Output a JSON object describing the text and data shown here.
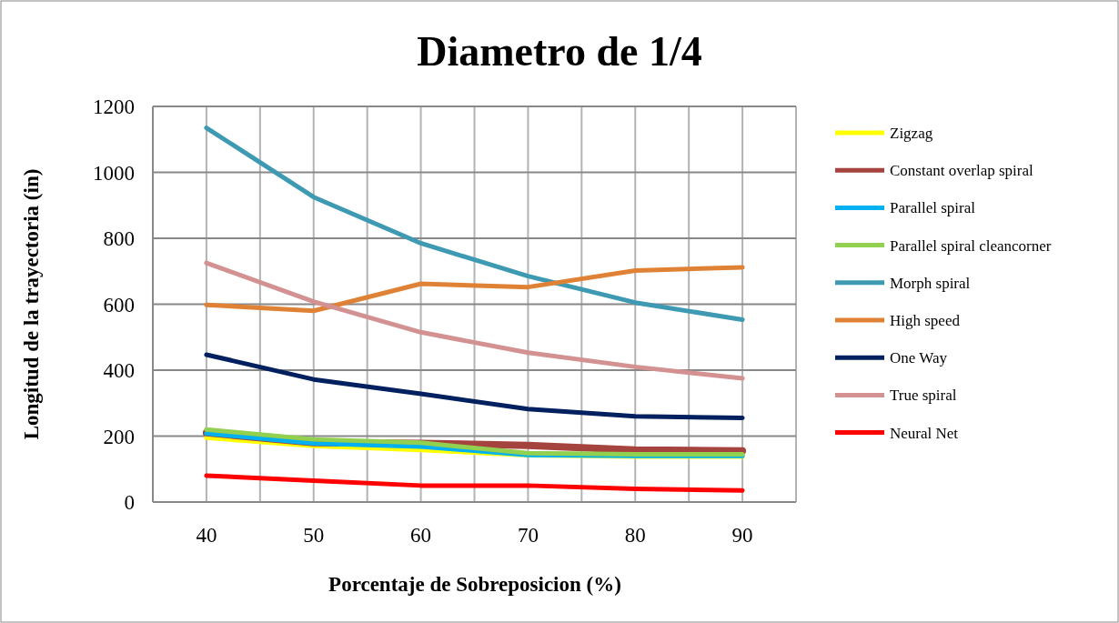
{
  "chart_data": {
    "type": "line",
    "title": "Diametro de 1/4",
    "xlabel": "Porcentaje de Sobreposicion (%)",
    "ylabel": "Longitud de la trayectoria (in)",
    "x": [
      40,
      50,
      60,
      70,
      80,
      90
    ],
    "xlim": [
      35,
      95
    ],
    "xticks": [
      {
        "value": 35,
        "label": null
      },
      40,
      {
        "value": 45,
        "label": null
      },
      50,
      {
        "value": 55,
        "label": null
      },
      60,
      {
        "value": 65,
        "label": null
      },
      70,
      {
        "value": 75,
        "label": null
      },
      80,
      {
        "value": 85,
        "label": null
      },
      90,
      {
        "value": 95,
        "label": null
      }
    ],
    "ylim": [
      0,
      1200
    ],
    "yticks": [
      0,
      200,
      400,
      600,
      800,
      1000,
      1200
    ],
    "grid": true,
    "legend": "right",
    "marker": "none",
    "line_style": "solid",
    "series": [
      {
        "name": "Zigzag",
        "color": "#ffff00",
        "values": [
          195,
          170,
          158,
          142,
          138,
          138
        ]
      },
      {
        "name": "Constant overlap spiral",
        "color": "#a5433f",
        "values": [
          210,
          180,
          178,
          172,
          158,
          155
        ]
      },
      {
        "name": "Parallel spiral",
        "color": "#00b0f0",
        "values": [
          208,
          178,
          168,
          143,
          140,
          140
        ]
      },
      {
        "name": "Parallel spiral cleancorner",
        "color": "#92d050",
        "values": [
          220,
          190,
          180,
          148,
          145,
          145
        ]
      },
      {
        "name": "Morph spiral",
        "color": "#3e9ab3",
        "values": [
          1135,
          925,
          785,
          685,
          605,
          553
        ]
      },
      {
        "name": "High speed",
        "color": "#e08236",
        "values": [
          598,
          580,
          662,
          652,
          702,
          712
        ]
      },
      {
        "name": "One Way",
        "color": "#002060",
        "values": [
          447,
          372,
          328,
          282,
          260,
          255
        ]
      },
      {
        "name": "True spiral",
        "color": "#d39192",
        "values": [
          725,
          608,
          515,
          453,
          410,
          375
        ]
      },
      {
        "name": "Neural Net",
        "color": "#ff0000",
        "values": [
          80,
          65,
          50,
          50,
          40,
          35
        ]
      }
    ]
  }
}
